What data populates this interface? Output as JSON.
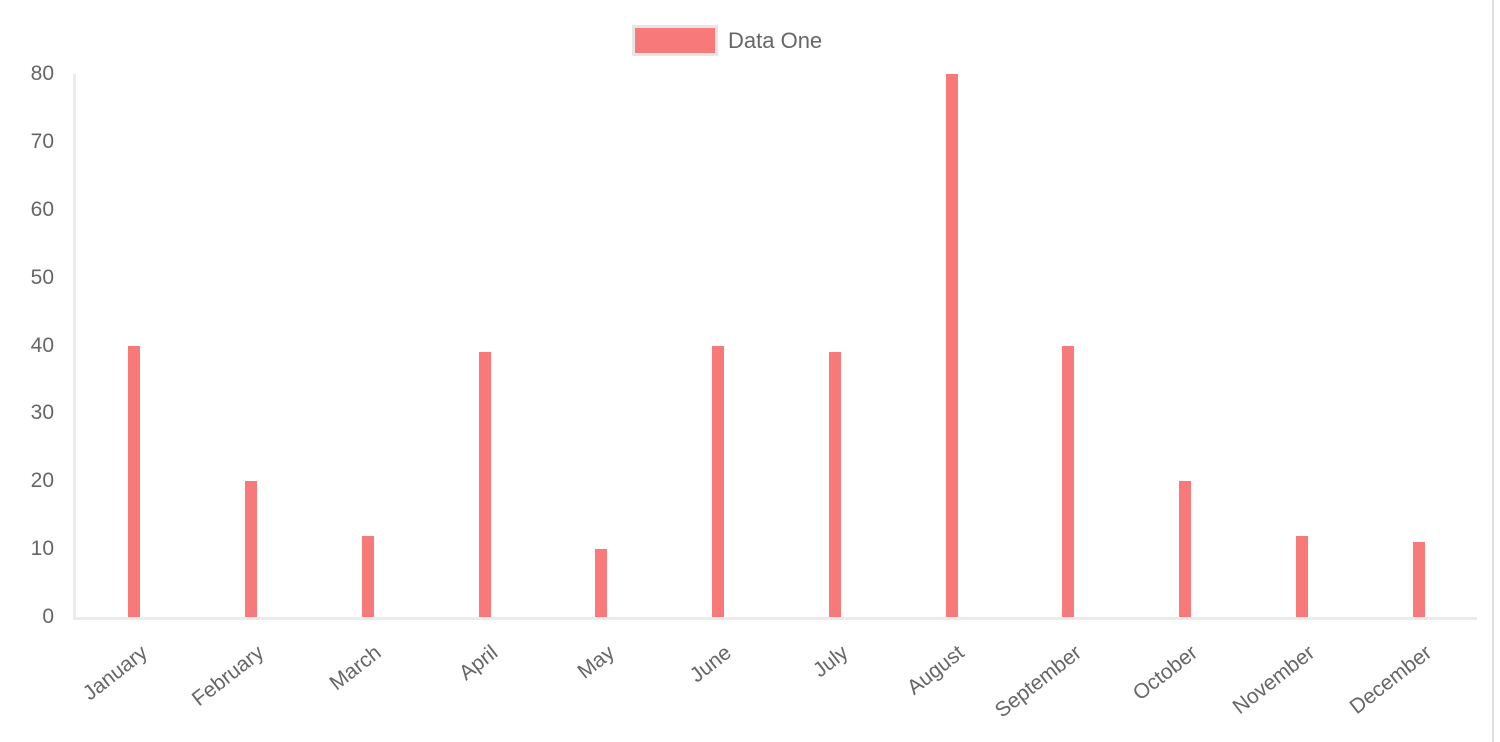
{
  "chart_data": {
    "type": "bar",
    "title": "",
    "xlabel": "",
    "ylabel": "",
    "categories": [
      "January",
      "February",
      "March",
      "April",
      "May",
      "June",
      "July",
      "August",
      "September",
      "October",
      "November",
      "December"
    ],
    "series": [
      {
        "name": "Data One",
        "color": "#f87979",
        "values": [
          40,
          20,
          12,
          39,
          10,
          40,
          39,
          80,
          40,
          20,
          12,
          11
        ]
      }
    ],
    "ylim": [
      0,
      80
    ],
    "yticks": [
      0,
      10,
      20,
      30,
      40,
      50,
      60,
      70,
      80
    ],
    "grid": false,
    "legend_position": "top",
    "x_label_rotation_deg": -38
  },
  "legend": {
    "label": "Data One"
  },
  "colors": {
    "bar": "#f87979",
    "legend_border": "#e6e6e6",
    "axis_line": "#ececec",
    "text": "#666666"
  }
}
